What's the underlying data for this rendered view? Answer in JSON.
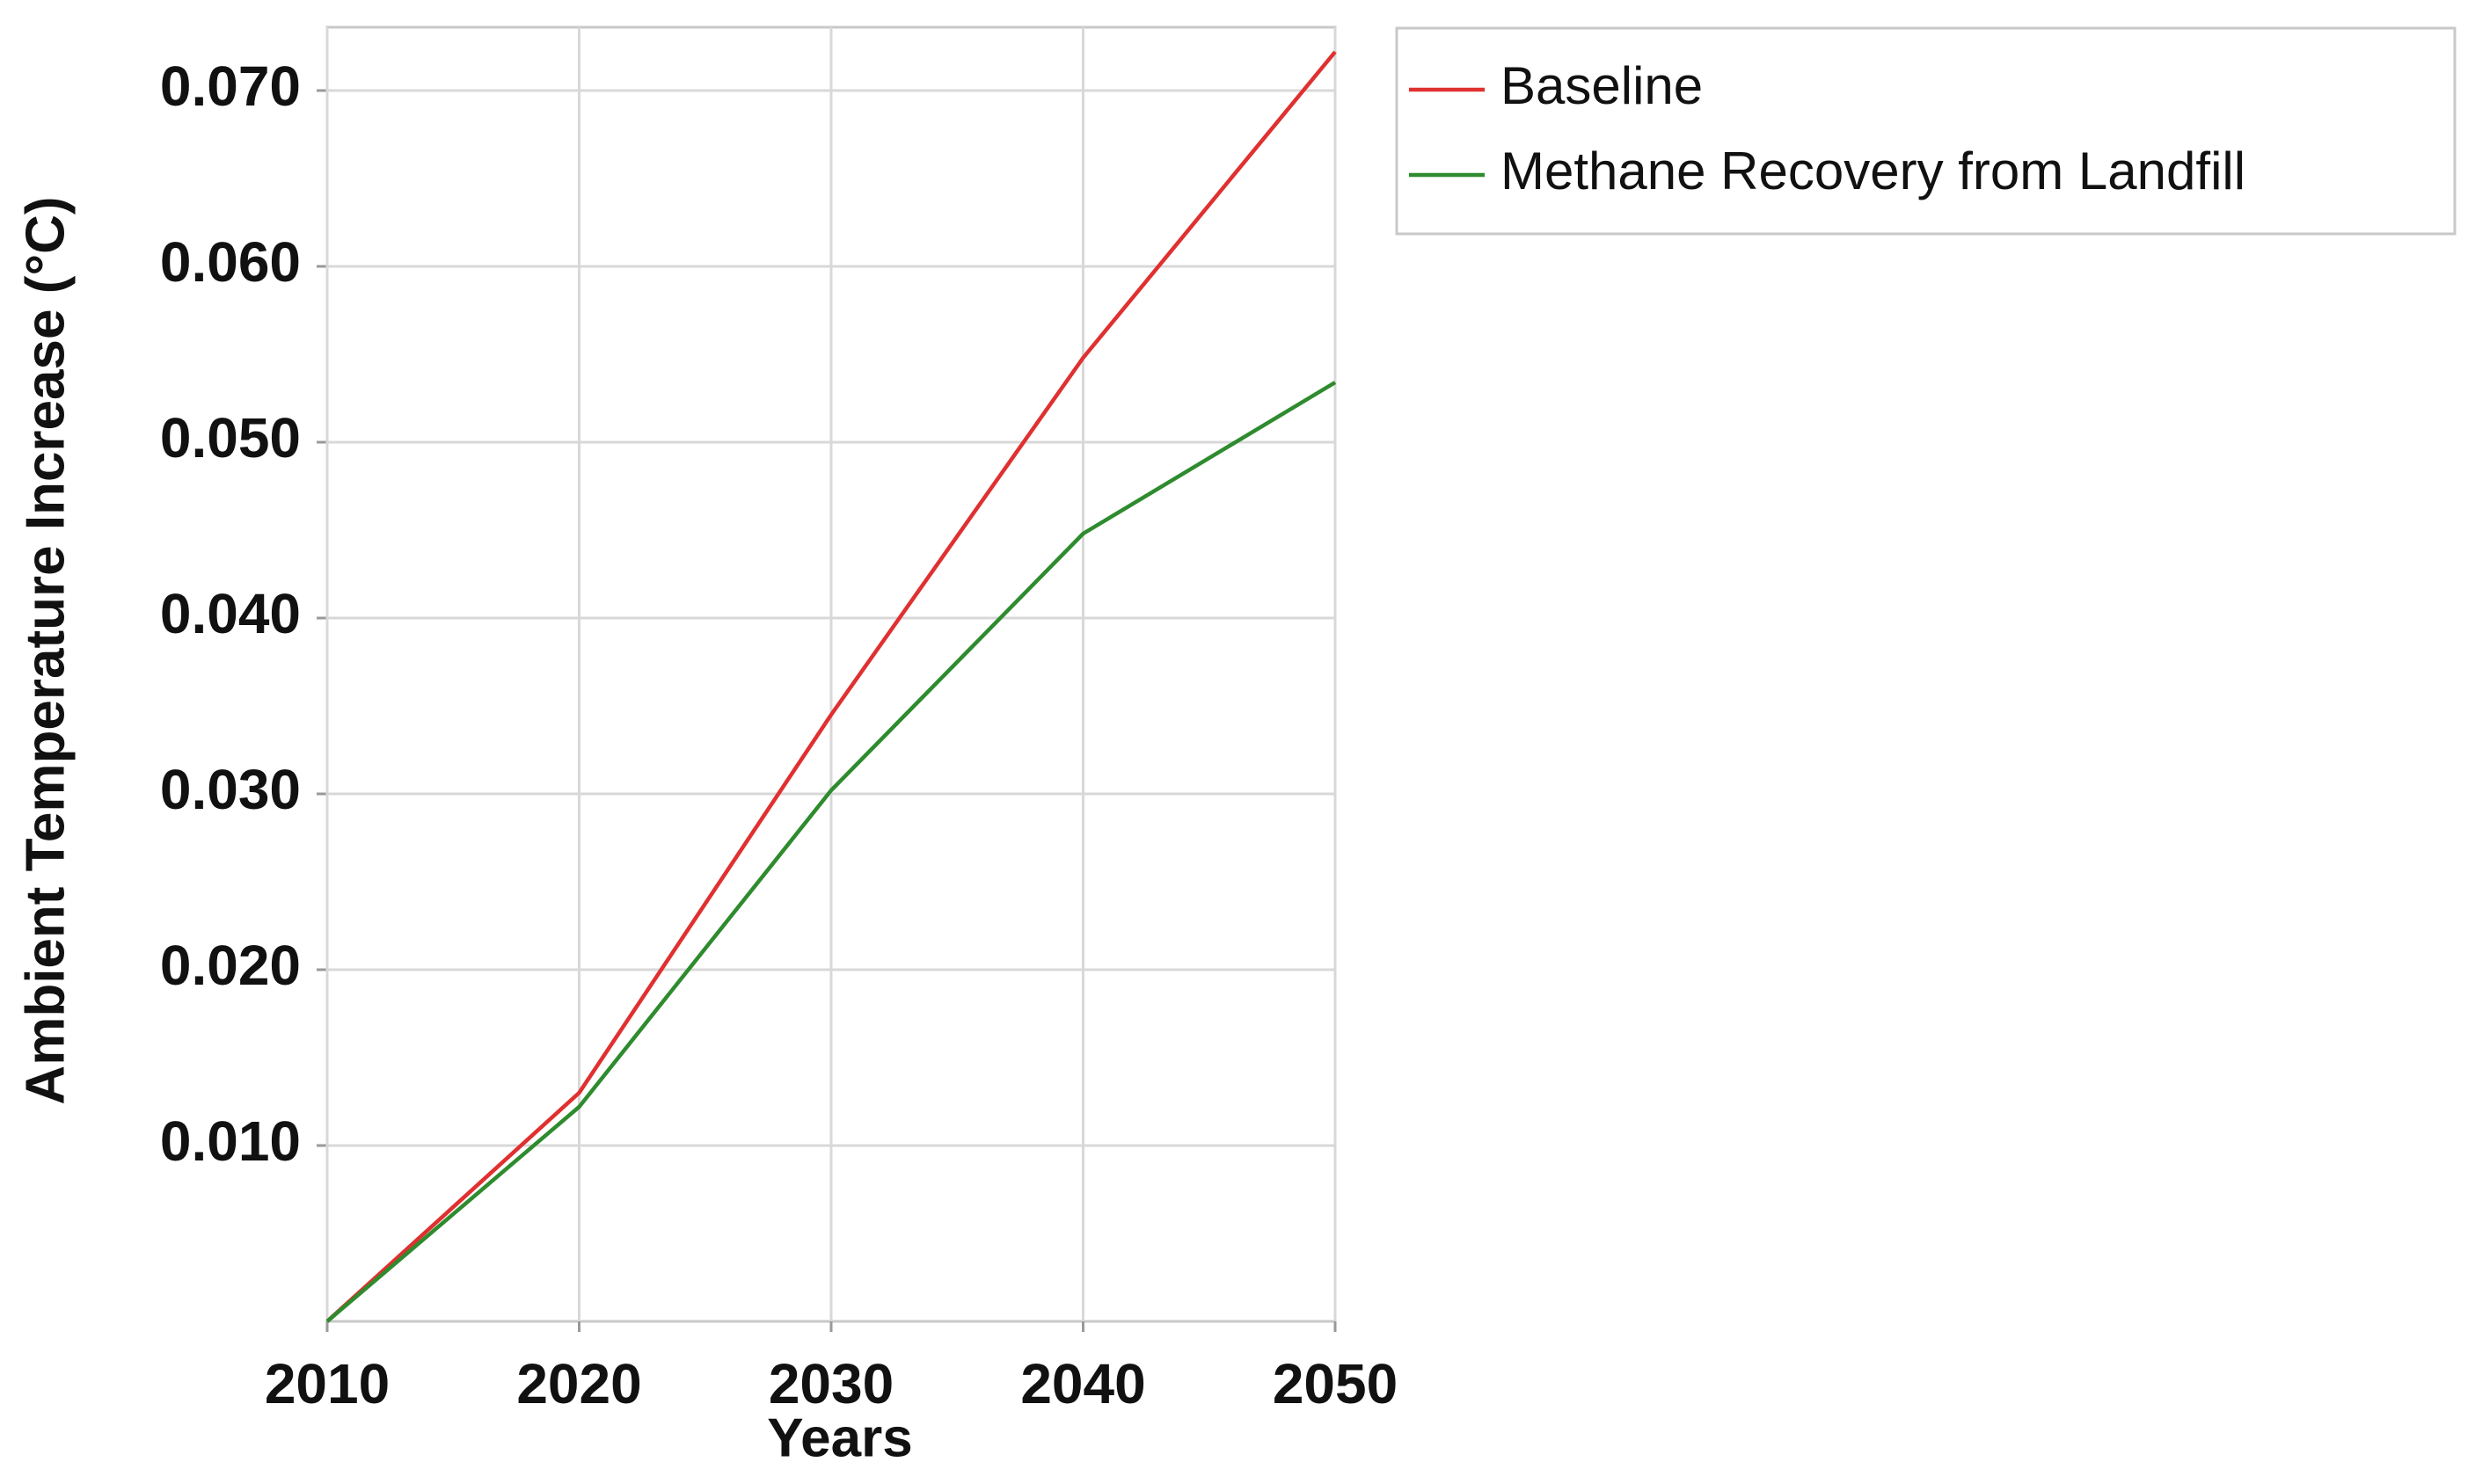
{
  "chart_data": {
    "type": "line",
    "x": [
      2010,
      2020,
      2030,
      2040,
      2050
    ],
    "xlabel": "Years",
    "ylabel": "Ambient Temperature Increase (°C)",
    "xlim": [
      2010,
      2050
    ],
    "xticks": [
      2010,
      2020,
      2030,
      2040,
      2050
    ],
    "ylim": [
      0,
      0.0736
    ],
    "yticks": [
      {
        "value": 0.01,
        "label": "0.010"
      },
      {
        "value": 0.02,
        "label": "0.020"
      },
      {
        "value": 0.03,
        "label": "0.030"
      },
      {
        "value": 0.04,
        "label": "0.040"
      },
      {
        "value": 0.05,
        "label": "0.050"
      },
      {
        "value": 0.06,
        "label": "0.060"
      },
      {
        "value": 0.07,
        "label": "0.070"
      }
    ],
    "grid": true,
    "legend": "outside-right-top",
    "series": [
      {
        "name": "Baseline",
        "color": "#e03030",
        "values": [
          0,
          0.013,
          0.0345,
          0.0548,
          0.0722
        ]
      },
      {
        "name": "Methane Recovery from Landfill",
        "color": "#2e8b2e",
        "values": [
          0,
          0.0122,
          0.0302,
          0.0448,
          0.0534
        ]
      }
    ]
  }
}
